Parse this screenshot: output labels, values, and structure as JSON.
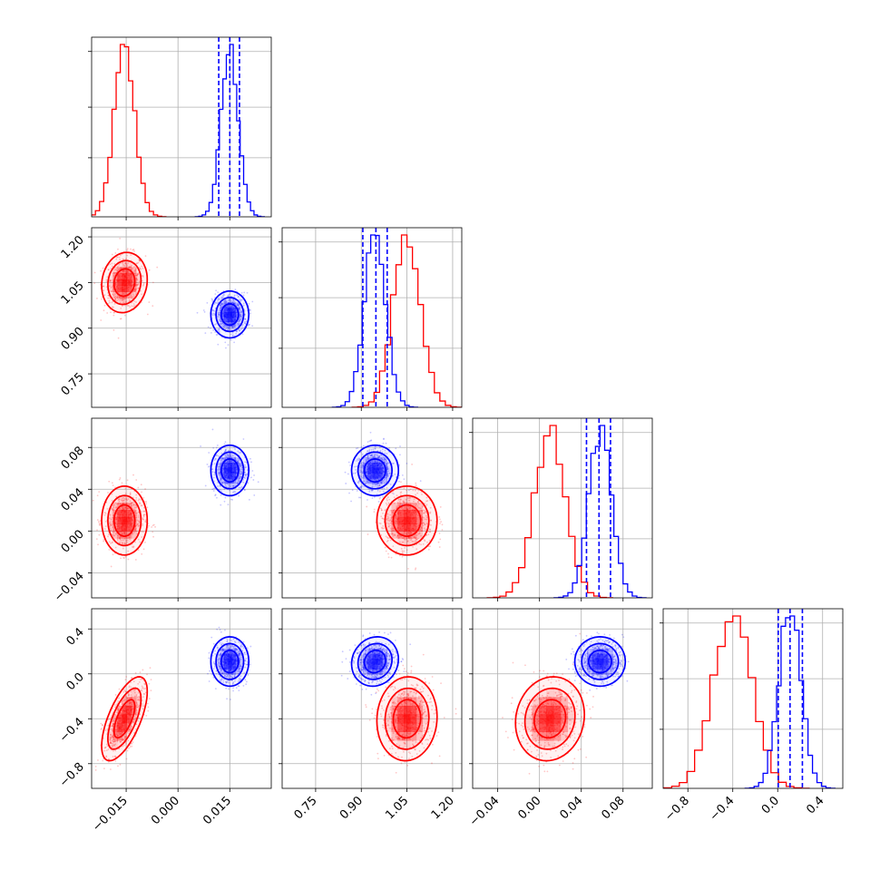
{
  "chart_data": {
    "type": "corner",
    "parameters": [
      {
        "range": [
          -0.025,
          0.027
        ],
        "ticks": [
          -0.015,
          0.0,
          0.015
        ],
        "tick_labels": [
          "−0.015",
          "0.000",
          "0.015"
        ]
      },
      {
        "range": [
          0.64,
          1.23
        ],
        "ticks": [
          0.75,
          0.9,
          1.05,
          1.2
        ],
        "tick_labels": [
          "0.75",
          "0.90",
          "1.05",
          "1.20"
        ]
      },
      {
        "range": [
          -0.064,
          0.108
        ],
        "ticks": [
          -0.04,
          0.0,
          0.04,
          0.08
        ],
        "tick_labels": [
          "−0.04",
          "0.00",
          "0.04",
          "0.08"
        ]
      },
      {
        "range": [
          -1.02,
          0.58
        ],
        "ticks": [
          -0.8,
          -0.4,
          0.0,
          0.4
        ],
        "tick_labels": [
          "−0.8",
          "−0.4",
          "0.0",
          "0.4"
        ]
      }
    ],
    "series": [
      {
        "color": "#ff0000",
        "mean": [
          -0.0155,
          1.05,
          0.01,
          -0.4
        ],
        "std": [
          0.003,
          0.045,
          0.015,
          0.17
        ],
        "corr": [
          [
            0,
            1,
            0.1
          ],
          [
            0,
            3,
            0.65
          ],
          [
            1,
            3,
            0.05
          ],
          [
            2,
            3,
            0.1
          ]
        ],
        "quantiles": null
      },
      {
        "color": "#0000ff",
        "mean": [
          0.015,
          0.945,
          0.058,
          0.11
        ],
        "std": [
          0.0025,
          0.035,
          0.011,
          0.1
        ],
        "corr": [
          [
            1,
            3,
            0.1
          ]
        ],
        "quantiles": [
          [
            0.0118,
            0.015,
            0.0178
          ],
          [
            0.905,
            0.948,
            0.985
          ],
          [
            0.045,
            0.057,
            0.068
          ],
          [
            0.005,
            0.11,
            0.22
          ]
        ]
      }
    ],
    "grid": true
  }
}
